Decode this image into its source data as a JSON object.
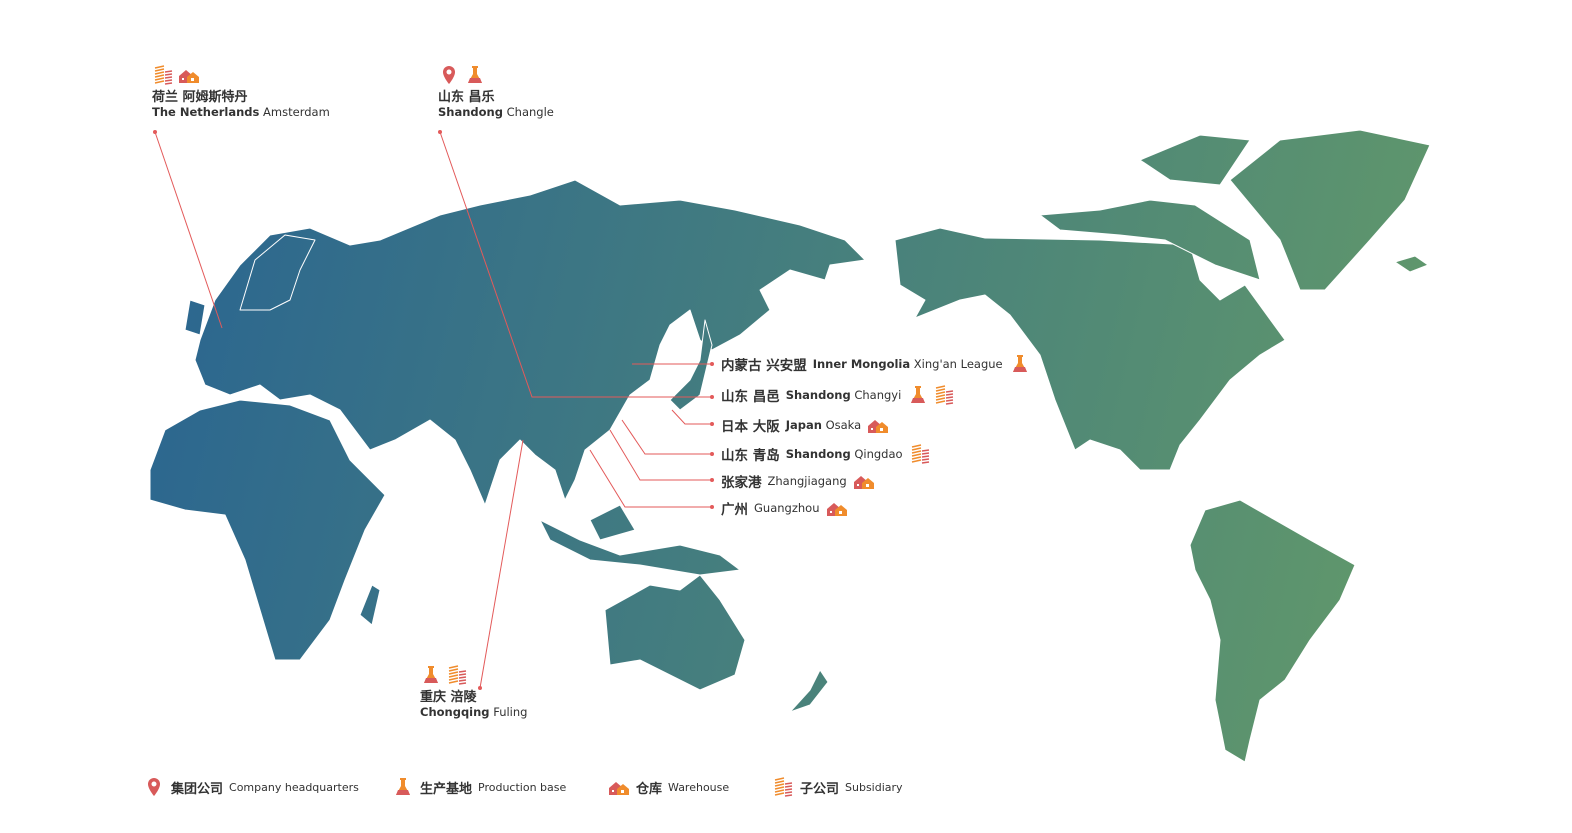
{
  "colors": {
    "map_start": "#2b6690",
    "map_end": "#62996a",
    "leader": "#e35a5a",
    "pin": "#d85a5a",
    "orange": "#f08c2c"
  },
  "top_labels": [
    {
      "zh": "荷兰 阿姆斯特丹",
      "en_bold": "The Netherlands",
      "en": "Amsterdam",
      "icons": [
        "subsidiary-icon",
        "warehouse-icon"
      ]
    },
    {
      "zh": "山东 昌乐",
      "en_bold": "Shandong",
      "en": "Changle",
      "icons": [
        "headquarters-pin-icon",
        "production-flask-icon"
      ]
    }
  ],
  "bottom_label": {
    "zh": "重庆 涪陵",
    "en_bold": "Chongqing",
    "en": "Fuling",
    "icons": [
      "production-flask-icon",
      "subsidiary-icon"
    ]
  },
  "right_labels": [
    {
      "zh": "内蒙古 兴安盟",
      "en_bold": "Inner Mongolia",
      "en": "Xing'an League",
      "icons": [
        "production-flask-icon"
      ]
    },
    {
      "zh": "山东 昌邑",
      "en_bold": "Shandong",
      "en": "Changyi",
      "icons": [
        "production-flask-icon",
        "subsidiary-icon"
      ]
    },
    {
      "zh": "日本 大阪",
      "en_bold": "Japan",
      "en": "Osaka",
      "icons": [
        "warehouse-icon"
      ]
    },
    {
      "zh": "山东 青岛",
      "en_bold": "Shandong",
      "en": "Qingdao",
      "icons": [
        "subsidiary-icon"
      ]
    },
    {
      "zh": "张家港",
      "en_bold": "",
      "en": "Zhangjiagang",
      "icons": [
        "warehouse-icon"
      ]
    },
    {
      "zh": "广州",
      "en_bold": "",
      "en": "Guangzhou",
      "icons": [
        "warehouse-icon"
      ]
    }
  ],
  "legend": [
    {
      "icon": "headquarters-pin-icon",
      "zh": "集团公司",
      "en": "Company headquarters"
    },
    {
      "icon": "production-flask-icon",
      "zh": "生产基地",
      "en": "Production base"
    },
    {
      "icon": "warehouse-icon",
      "zh": "仓库",
      "en": "Warehouse"
    },
    {
      "icon": "subsidiary-icon",
      "zh": "子公司",
      "en": "Subsidiary"
    }
  ]
}
